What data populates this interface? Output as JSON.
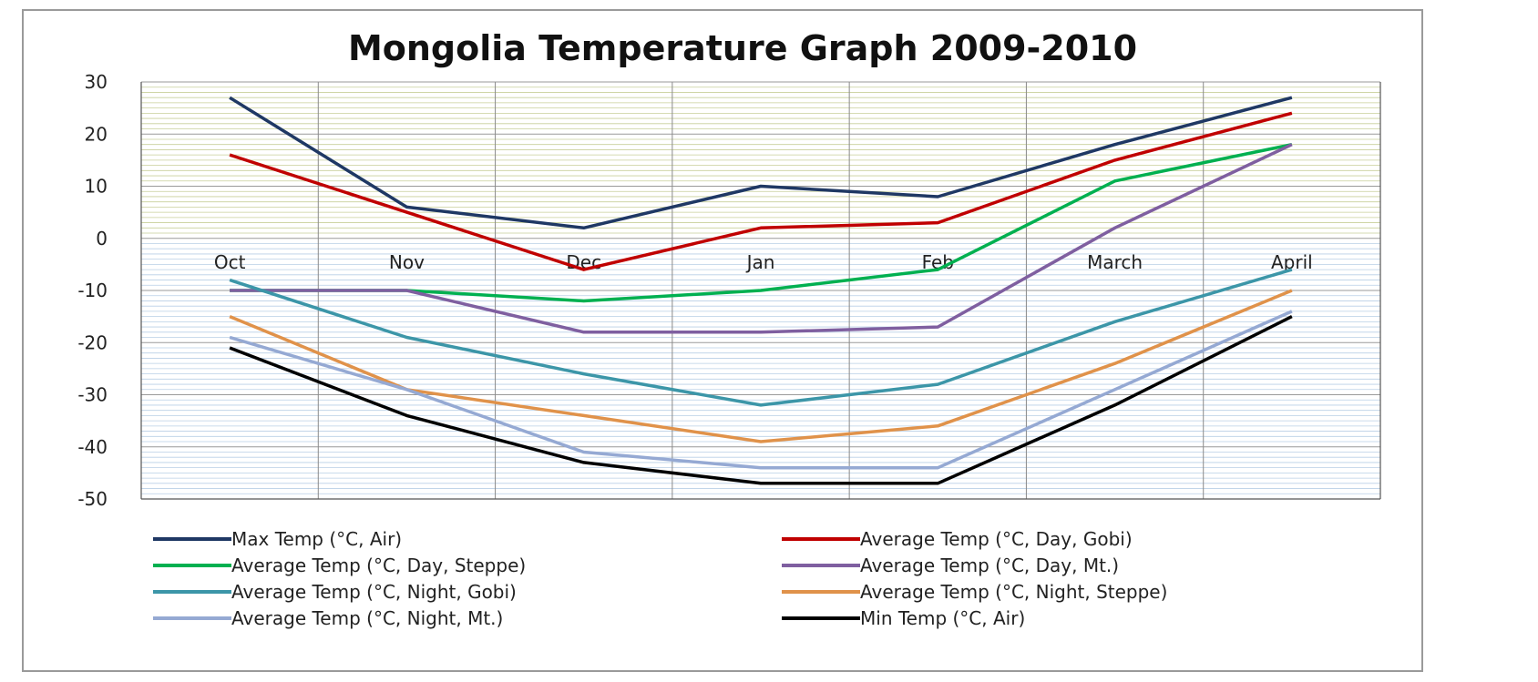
{
  "chart_data": {
    "type": "line",
    "title": "Mongolia Temperature Graph 2009-2010",
    "categories": [
      "Oct",
      "Nov",
      "Dec",
      "Jan",
      "Feb",
      "March",
      "April"
    ],
    "ylim": [
      -50,
      30
    ],
    "yticks": [
      30,
      20,
      10,
      0,
      -10,
      -20,
      -30,
      -40,
      -50
    ],
    "grid": true,
    "legend_position": "bottom",
    "series": [
      {
        "name": "Max Temp (°C, Air)",
        "color": "#1f3864",
        "values": [
          27,
          6,
          2,
          10,
          8,
          18,
          27
        ]
      },
      {
        "name": "Average Temp (°C, Day, Gobi)",
        "color": "#c00000",
        "values": [
          16,
          5,
          -6,
          2,
          3,
          15,
          24
        ]
      },
      {
        "name": "Average Temp (°C, Day, Steppe)",
        "color": "#00b050",
        "values": [
          -10,
          -10,
          -12,
          -10,
          -6,
          11,
          18
        ]
      },
      {
        "name": "Average Temp (°C, Day, Mt.)",
        "color": "#7f5fa0",
        "values": [
          -10,
          -10,
          -18,
          -18,
          -17,
          2,
          18
        ]
      },
      {
        "name": "Average Temp (°C, Night, Gobi)",
        "color": "#3c96a8",
        "values": [
          -8,
          -19,
          -26,
          -32,
          -28,
          -16,
          -6
        ]
      },
      {
        "name": "Average Temp (°C, Night, Steppe)",
        "color": "#e0924a",
        "values": [
          -15,
          -29,
          -34,
          -39,
          -36,
          -24,
          -10
        ]
      },
      {
        "name": "Average Temp (°C, Night, Mt.)",
        "color": "#95a9d3",
        "values": [
          -19,
          -29,
          -41,
          -44,
          -44,
          -29,
          -14
        ]
      },
      {
        "name": "Min Temp (°C, Air)",
        "color": "#000000",
        "values": [
          -21,
          -34,
          -43,
          -47,
          -47,
          -32,
          -15
        ]
      }
    ]
  }
}
